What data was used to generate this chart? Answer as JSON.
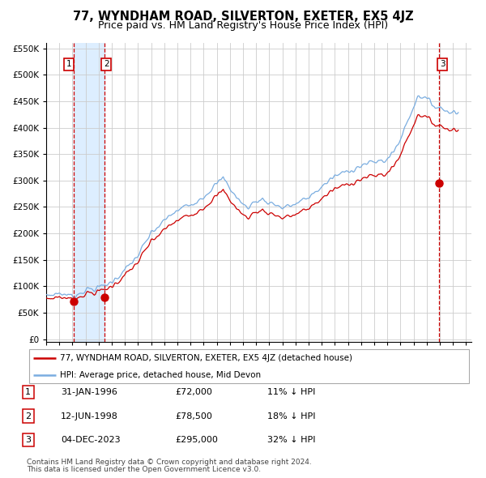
{
  "title": "77, WYNDHAM ROAD, SILVERTON, EXETER, EX5 4JZ",
  "subtitle": "Price paid vs. HM Land Registry's House Price Index (HPI)",
  "sales": [
    {
      "date_float": 1996.08,
      "price": 72000,
      "label": "1"
    },
    {
      "date_float": 1998.45,
      "price": 78500,
      "label": "2"
    },
    {
      "date_float": 2023.92,
      "price": 295000,
      "label": "3"
    }
  ],
  "legend_entries": [
    {
      "label": "77, WYNDHAM ROAD, SILVERTON, EXETER, EX5 4JZ (detached house)",
      "color": "#cc0000"
    },
    {
      "label": "HPI: Average price, detached house, Mid Devon",
      "color": "#7aade0"
    }
  ],
  "table_rows": [
    {
      "num": "1",
      "date": "31-JAN-1996",
      "price": "£72,000",
      "hpi": "11% ↓ HPI"
    },
    {
      "num": "2",
      "date": "12-JUN-1998",
      "price": "£78,500",
      "hpi": "18% ↓ HPI"
    },
    {
      "num": "3",
      "date": "04-DEC-2023",
      "price": "£295,000",
      "hpi": "32% ↓ HPI"
    }
  ],
  "footnote1": "Contains HM Land Registry data © Crown copyright and database right 2024.",
  "footnote2": "This data is licensed under the Open Government Licence v3.0.",
  "yticks": [
    0,
    50000,
    100000,
    150000,
    200000,
    250000,
    300000,
    350000,
    400000,
    450000,
    500000,
    550000
  ],
  "background_color": "#ffffff",
  "plot_bg_color": "#ffffff",
  "grid_color": "#cccccc",
  "shaded_region_color": "#ddeeff",
  "title_fontsize": 10.5,
  "subtitle_fontsize": 9,
  "axis_fontsize": 7.5,
  "legend_fontsize": 7.5,
  "table_fontsize": 8
}
